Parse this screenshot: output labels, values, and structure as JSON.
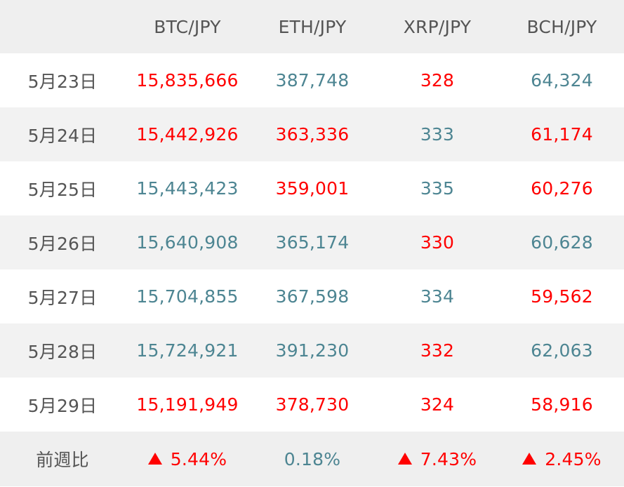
{
  "colors": {
    "up": "#ff0000",
    "down": "#4d8592",
    "label": "#555555",
    "header_bg": "#efefef",
    "stripe_bg": "#f2f2f2"
  },
  "header": {
    "corner": "",
    "pairs": [
      "BTC/JPY",
      "ETH/JPY",
      "XRP/JPY",
      "BCH/JPY"
    ]
  },
  "rows": [
    {
      "date": "5月23日",
      "cells": [
        {
          "value": "15,835,666",
          "trend": "up"
        },
        {
          "value": "387,748",
          "trend": "down"
        },
        {
          "value": "328",
          "trend": "up"
        },
        {
          "value": "64,324",
          "trend": "down"
        }
      ]
    },
    {
      "date": "5月24日",
      "cells": [
        {
          "value": "15,442,926",
          "trend": "up"
        },
        {
          "value": "363,336",
          "trend": "up"
        },
        {
          "value": "333",
          "trend": "down"
        },
        {
          "value": "61,174",
          "trend": "up"
        }
      ]
    },
    {
      "date": "5月25日",
      "cells": [
        {
          "value": "15,443,423",
          "trend": "down"
        },
        {
          "value": "359,001",
          "trend": "up"
        },
        {
          "value": "335",
          "trend": "down"
        },
        {
          "value": "60,276",
          "trend": "up"
        }
      ]
    },
    {
      "date": "5月26日",
      "cells": [
        {
          "value": "15,640,908",
          "trend": "down"
        },
        {
          "value": "365,174",
          "trend": "down"
        },
        {
          "value": "330",
          "trend": "up"
        },
        {
          "value": "60,628",
          "trend": "down"
        }
      ]
    },
    {
      "date": "5月27日",
      "cells": [
        {
          "value": "15,704,855",
          "trend": "down"
        },
        {
          "value": "367,598",
          "trend": "down"
        },
        {
          "value": "334",
          "trend": "down"
        },
        {
          "value": "59,562",
          "trend": "up"
        }
      ]
    },
    {
      "date": "5月28日",
      "cells": [
        {
          "value": "15,724,921",
          "trend": "down"
        },
        {
          "value": "391,230",
          "trend": "down"
        },
        {
          "value": "332",
          "trend": "up"
        },
        {
          "value": "62,063",
          "trend": "down"
        }
      ]
    },
    {
      "date": "5月29日",
      "cells": [
        {
          "value": "15,191,949",
          "trend": "up"
        },
        {
          "value": "378,730",
          "trend": "up"
        },
        {
          "value": "324",
          "trend": "up"
        },
        {
          "value": "58,916",
          "trend": "up"
        }
      ]
    }
  ],
  "summary": {
    "label": "前週比",
    "cells": [
      {
        "value": "5.44%",
        "trend": "up",
        "icon": "up-triangle-icon"
      },
      {
        "value": "0.18%",
        "trend": "down",
        "icon": ""
      },
      {
        "value": "7.43%",
        "trend": "up",
        "icon": "up-triangle-icon"
      },
      {
        "value": "2.45%",
        "trend": "up",
        "icon": "up-triangle-icon"
      }
    ]
  }
}
